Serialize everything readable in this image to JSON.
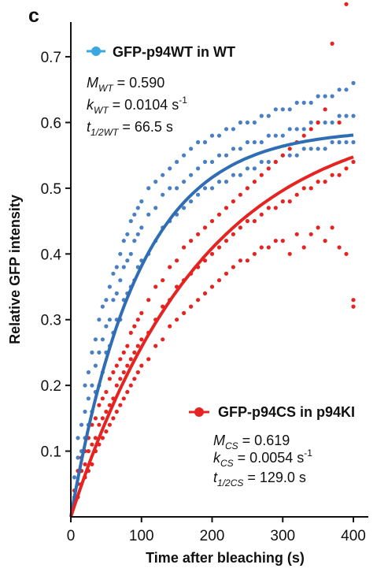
{
  "chart_data": {
    "type": "scatter",
    "panel_label": "c",
    "xlabel": "Time after bleaching (s)",
    "ylabel": "Relative GFP intensity",
    "xlim": [
      0,
      410
    ],
    "ylim": [
      0,
      0.76
    ],
    "x_ticks": [
      0,
      100,
      200,
      300,
      400
    ],
    "x_tick_labels": [
      "0",
      "100",
      "200",
      "300",
      "400"
    ],
    "y_ticks": [
      0.1,
      0.2,
      0.3,
      0.4,
      0.5,
      0.6,
      0.7
    ],
    "y_tick_labels": [
      "0.1",
      "0.2",
      "0.3",
      "0.4",
      "0.5",
      "0.6",
      "0.7"
    ],
    "grid": false,
    "series": [
      {
        "name": "GFP-p94WT in WT",
        "color": "#4a7fc1",
        "fit_color": "#2f6db5",
        "fit": {
          "M": 0.59,
          "k": 0.0104
        },
        "params": {
          "M_sym": "M",
          "M_sub": "WT",
          "M_val": " = 0.590",
          "k_sym": "k",
          "k_sub": "WT",
          "k_val": " = 0.0104 s",
          "k_unit_sup": "-1",
          "t_sym": "t",
          "t_sub": "1/2WT",
          "t_val": " = 66.5 s"
        },
        "points": [
          [
            5,
            0.03
          ],
          [
            5,
            0.06
          ],
          [
            10,
            0.05
          ],
          [
            10,
            0.09
          ],
          [
            10,
            0.12
          ],
          [
            15,
            0.07
          ],
          [
            15,
            0.1
          ],
          [
            15,
            0.14
          ],
          [
            20,
            0.12
          ],
          [
            20,
            0.16
          ],
          [
            20,
            0.2
          ],
          [
            25,
            0.14
          ],
          [
            25,
            0.18
          ],
          [
            25,
            0.22
          ],
          [
            30,
            0.16
          ],
          [
            30,
            0.2
          ],
          [
            30,
            0.25
          ],
          [
            35,
            0.19
          ],
          [
            35,
            0.23
          ],
          [
            35,
            0.27
          ],
          [
            40,
            0.2
          ],
          [
            40,
            0.25
          ],
          [
            40,
            0.3
          ],
          [
            45,
            0.22
          ],
          [
            45,
            0.27
          ],
          [
            45,
            0.32
          ],
          [
            50,
            0.25
          ],
          [
            50,
            0.29
          ],
          [
            50,
            0.33
          ],
          [
            55,
            0.26
          ],
          [
            55,
            0.3
          ],
          [
            55,
            0.35
          ],
          [
            60,
            0.28
          ],
          [
            60,
            0.33
          ],
          [
            60,
            0.37
          ],
          [
            65,
            0.3
          ],
          [
            65,
            0.34
          ],
          [
            65,
            0.38
          ],
          [
            70,
            0.3
          ],
          [
            70,
            0.36
          ],
          [
            70,
            0.4
          ],
          [
            75,
            0.33
          ],
          [
            75,
            0.38
          ],
          [
            75,
            0.42
          ],
          [
            80,
            0.34
          ],
          [
            80,
            0.39
          ],
          [
            80,
            0.43
          ],
          [
            85,
            0.35
          ],
          [
            85,
            0.4
          ],
          [
            85,
            0.45
          ],
          [
            90,
            0.36
          ],
          [
            90,
            0.42
          ],
          [
            90,
            0.46
          ],
          [
            95,
            0.38
          ],
          [
            95,
            0.43
          ],
          [
            95,
            0.47
          ],
          [
            100,
            0.39
          ],
          [
            100,
            0.44
          ],
          [
            100,
            0.48
          ],
          [
            110,
            0.4
          ],
          [
            110,
            0.46
          ],
          [
            110,
            0.5
          ],
          [
            120,
            0.42
          ],
          [
            120,
            0.47
          ],
          [
            120,
            0.51
          ],
          [
            130,
            0.44
          ],
          [
            130,
            0.49
          ],
          [
            130,
            0.52
          ],
          [
            140,
            0.45
          ],
          [
            140,
            0.5
          ],
          [
            140,
            0.53
          ],
          [
            150,
            0.46
          ],
          [
            150,
            0.5
          ],
          [
            150,
            0.54
          ],
          [
            160,
            0.47
          ],
          [
            160,
            0.51
          ],
          [
            160,
            0.55
          ],
          [
            170,
            0.48
          ],
          [
            170,
            0.52
          ],
          [
            170,
            0.56
          ],
          [
            180,
            0.49
          ],
          [
            180,
            0.53
          ],
          [
            180,
            0.57
          ],
          [
            190,
            0.5
          ],
          [
            190,
            0.54
          ],
          [
            190,
            0.57
          ],
          [
            200,
            0.5
          ],
          [
            200,
            0.54
          ],
          [
            200,
            0.58
          ],
          [
            210,
            0.51
          ],
          [
            210,
            0.55
          ],
          [
            210,
            0.58
          ],
          [
            220,
            0.51
          ],
          [
            220,
            0.55
          ],
          [
            220,
            0.59
          ],
          [
            230,
            0.52
          ],
          [
            230,
            0.56
          ],
          [
            230,
            0.59
          ],
          [
            240,
            0.52
          ],
          [
            240,
            0.56
          ],
          [
            240,
            0.6
          ],
          [
            250,
            0.53
          ],
          [
            250,
            0.57
          ],
          [
            250,
            0.6
          ],
          [
            260,
            0.53
          ],
          [
            260,
            0.57
          ],
          [
            260,
            0.6
          ],
          [
            270,
            0.54
          ],
          [
            270,
            0.57
          ],
          [
            270,
            0.61
          ],
          [
            280,
            0.54
          ],
          [
            280,
            0.58
          ],
          [
            280,
            0.61
          ],
          [
            290,
            0.54
          ],
          [
            290,
            0.58
          ],
          [
            290,
            0.62
          ],
          [
            300,
            0.55
          ],
          [
            300,
            0.58
          ],
          [
            300,
            0.62
          ],
          [
            310,
            0.55
          ],
          [
            310,
            0.59
          ],
          [
            310,
            0.62
          ],
          [
            320,
            0.55
          ],
          [
            320,
            0.59
          ],
          [
            320,
            0.63
          ],
          [
            330,
            0.56
          ],
          [
            330,
            0.59
          ],
          [
            330,
            0.63
          ],
          [
            340,
            0.56
          ],
          [
            340,
            0.6
          ],
          [
            340,
            0.63
          ],
          [
            350,
            0.56
          ],
          [
            350,
            0.6
          ],
          [
            350,
            0.64
          ],
          [
            360,
            0.56
          ],
          [
            360,
            0.6
          ],
          [
            360,
            0.64
          ],
          [
            370,
            0.57
          ],
          [
            370,
            0.6
          ],
          [
            370,
            0.64
          ],
          [
            380,
            0.57
          ],
          [
            380,
            0.61
          ],
          [
            380,
            0.65
          ],
          [
            390,
            0.57
          ],
          [
            390,
            0.61
          ],
          [
            390,
            0.65
          ],
          [
            400,
            0.57
          ],
          [
            400,
            0.61
          ],
          [
            400,
            0.66
          ]
        ]
      },
      {
        "name": "GFP-p94CS in p94KI",
        "color": "#e52421",
        "fit_color": "#e52421",
        "fit": {
          "M": 0.619,
          "k": 0.0054
        },
        "params": {
          "M_sym": "M",
          "M_sub": "CS",
          "M_val": " = 0.619",
          "k_sym": "k",
          "k_sub": "CS",
          "k_val": " = 0.0054 s",
          "k_unit_sup": "-1",
          "t_sym": "t",
          "t_sub": "1/2CS",
          "t_val": " = 129.0 s"
        },
        "points": [
          [
            5,
            0.02
          ],
          [
            5,
            0.04
          ],
          [
            10,
            0.03
          ],
          [
            10,
            0.05
          ],
          [
            10,
            0.07
          ],
          [
            15,
            0.05
          ],
          [
            15,
            0.07
          ],
          [
            15,
            0.09
          ],
          [
            20,
            0.06
          ],
          [
            20,
            0.08
          ],
          [
            20,
            0.1
          ],
          [
            25,
            0.07
          ],
          [
            25,
            0.1
          ],
          [
            25,
            0.12
          ],
          [
            30,
            0.08
          ],
          [
            30,
            0.11
          ],
          [
            30,
            0.14
          ],
          [
            35,
            0.1
          ],
          [
            35,
            0.12
          ],
          [
            35,
            0.15
          ],
          [
            40,
            0.11
          ],
          [
            40,
            0.14
          ],
          [
            40,
            0.17
          ],
          [
            45,
            0.12
          ],
          [
            45,
            0.15
          ],
          [
            45,
            0.18
          ],
          [
            50,
            0.13
          ],
          [
            50,
            0.16
          ],
          [
            50,
            0.19
          ],
          [
            55,
            0.14
          ],
          [
            55,
            0.17
          ],
          [
            55,
            0.21
          ],
          [
            60,
            0.15
          ],
          [
            60,
            0.18
          ],
          [
            60,
            0.22
          ],
          [
            65,
            0.16
          ],
          [
            65,
            0.2
          ],
          [
            65,
            0.23
          ],
          [
            70,
            0.17
          ],
          [
            70,
            0.21
          ],
          [
            70,
            0.24
          ],
          [
            75,
            0.18
          ],
          [
            75,
            0.22
          ],
          [
            75,
            0.25
          ],
          [
            80,
            0.19
          ],
          [
            80,
            0.23
          ],
          [
            80,
            0.26
          ],
          [
            85,
            0.2
          ],
          [
            85,
            0.24
          ],
          [
            85,
            0.28
          ],
          [
            90,
            0.21
          ],
          [
            90,
            0.25
          ],
          [
            90,
            0.29
          ],
          [
            95,
            0.22
          ],
          [
            95,
            0.26
          ],
          [
            95,
            0.3
          ],
          [
            100,
            0.23
          ],
          [
            100,
            0.27
          ],
          [
            100,
            0.31
          ],
          [
            110,
            0.24
          ],
          [
            110,
            0.28
          ],
          [
            110,
            0.33
          ],
          [
            120,
            0.26
          ],
          [
            120,
            0.3
          ],
          [
            120,
            0.35
          ],
          [
            130,
            0.27
          ],
          [
            130,
            0.32
          ],
          [
            130,
            0.36
          ],
          [
            140,
            0.29
          ],
          [
            140,
            0.33
          ],
          [
            140,
            0.38
          ],
          [
            150,
            0.3
          ],
          [
            150,
            0.35
          ],
          [
            150,
            0.39
          ],
          [
            160,
            0.31
          ],
          [
            160,
            0.36
          ],
          [
            160,
            0.41
          ],
          [
            170,
            0.32
          ],
          [
            170,
            0.37
          ],
          [
            170,
            0.42
          ],
          [
            180,
            0.33
          ],
          [
            180,
            0.38
          ],
          [
            180,
            0.43
          ],
          [
            190,
            0.34
          ],
          [
            190,
            0.39
          ],
          [
            190,
            0.44
          ],
          [
            200,
            0.35
          ],
          [
            200,
            0.4
          ],
          [
            200,
            0.45
          ],
          [
            210,
            0.36
          ],
          [
            210,
            0.41
          ],
          [
            210,
            0.46
          ],
          [
            220,
            0.37
          ],
          [
            220,
            0.42
          ],
          [
            220,
            0.47
          ],
          [
            230,
            0.38
          ],
          [
            230,
            0.43
          ],
          [
            230,
            0.48
          ],
          [
            240,
            0.39
          ],
          [
            240,
            0.44
          ],
          [
            240,
            0.49
          ],
          [
            250,
            0.39
          ],
          [
            250,
            0.45
          ],
          [
            250,
            0.5
          ],
          [
            260,
            0.4
          ],
          [
            260,
            0.45
          ],
          [
            260,
            0.51
          ],
          [
            270,
            0.41
          ],
          [
            270,
            0.46
          ],
          [
            270,
            0.52
          ],
          [
            280,
            0.41
          ],
          [
            280,
            0.47
          ],
          [
            280,
            0.53
          ],
          [
            290,
            0.42
          ],
          [
            290,
            0.47
          ],
          [
            290,
            0.54
          ],
          [
            300,
            0.42
          ],
          [
            300,
            0.48
          ],
          [
            300,
            0.55
          ],
          [
            310,
            0.4
          ],
          [
            310,
            0.48
          ],
          [
            310,
            0.56
          ],
          [
            320,
            0.43
          ],
          [
            320,
            0.49
          ],
          [
            320,
            0.57
          ],
          [
            330,
            0.41
          ],
          [
            330,
            0.5
          ],
          [
            330,
            0.58
          ],
          [
            340,
            0.43
          ],
          [
            340,
            0.5
          ],
          [
            340,
            0.59
          ],
          [
            350,
            0.44
          ],
          [
            350,
            0.51
          ],
          [
            350,
            0.6
          ],
          [
            360,
            0.42
          ],
          [
            360,
            0.51
          ],
          [
            360,
            0.62
          ],
          [
            370,
            0.44
          ],
          [
            370,
            0.52
          ],
          [
            370,
            0.72
          ],
          [
            380,
            0.41
          ],
          [
            380,
            0.52
          ],
          [
            380,
            0.6
          ],
          [
            390,
            0.4
          ],
          [
            390,
            0.53
          ],
          [
            390,
            0.78
          ],
          [
            400,
            0.32
          ],
          [
            400,
            0.33
          ],
          [
            400,
            0.54
          ]
        ]
      }
    ]
  }
}
